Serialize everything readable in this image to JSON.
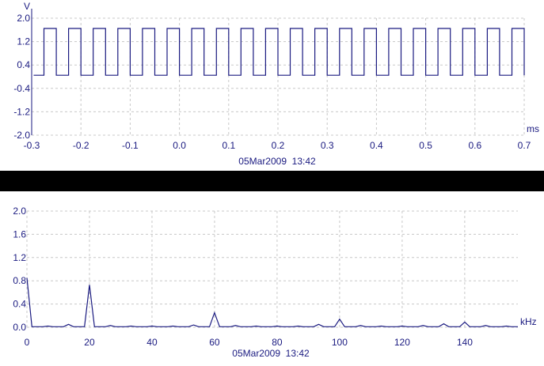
{
  "chart_data": [
    {
      "type": "line",
      "title": "",
      "xlabel": "",
      "ylabel": "",
      "x_unit": "ms",
      "y_unit": "V",
      "xlim": [
        -0.3,
        0.7
      ],
      "ylim": [
        -2.0,
        2.0
      ],
      "x_ticks": [
        "-0.3",
        "-0.2",
        "-0.1",
        "0.0",
        "0.1",
        "0.2",
        "0.3",
        "0.4",
        "0.5",
        "0.6",
        "0.7"
      ],
      "y_ticks": [
        "2.0",
        "1.2",
        "0.4",
        "-0.4",
        "-1.2",
        "-2.0"
      ],
      "grid": true,
      "timestamp": "05Mar2009  13:42",
      "series": [
        {
          "waveform": "square",
          "high": 1.65,
          "low": 0.05,
          "period_ms": 0.05,
          "first_rising_edge_ms": -0.275,
          "duty_cycle": 0.5
        }
      ],
      "color": "#1a1a80"
    },
    {
      "type": "line",
      "title": "",
      "xlabel": "",
      "ylabel": "",
      "x_unit": "kHz",
      "xlim": [
        0,
        157
      ],
      "ylim": [
        0.0,
        2.0
      ],
      "x_ticks": [
        "0",
        "20",
        "40",
        "60",
        "80",
        "100",
        "120",
        "140"
      ],
      "y_ticks": [
        "2.0",
        "1.6",
        "1.2",
        "0.8",
        "0.4",
        "0.0"
      ],
      "grid": true,
      "timestamp": "05Mar2009  13:42",
      "series": [
        {
          "peaks": [
            {
              "x": 0,
              "y": 0.85
            },
            {
              "x": 6.7,
              "y": 0.02
            },
            {
              "x": 13.3,
              "y": 0.05
            },
            {
              "x": 20,
              "y": 0.73
            },
            {
              "x": 26.7,
              "y": 0.03
            },
            {
              "x": 33.3,
              "y": 0.02
            },
            {
              "x": 40,
              "y": 0.02
            },
            {
              "x": 46.7,
              "y": 0.02
            },
            {
              "x": 53.3,
              "y": 0.04
            },
            {
              "x": 60,
              "y": 0.25
            },
            {
              "x": 66.7,
              "y": 0.03
            },
            {
              "x": 73.3,
              "y": 0.02
            },
            {
              "x": 80,
              "y": 0.02
            },
            {
              "x": 86.7,
              "y": 0.02
            },
            {
              "x": 93.3,
              "y": 0.05
            },
            {
              "x": 100,
              "y": 0.14
            },
            {
              "x": 106.7,
              "y": 0.03
            },
            {
              "x": 113.3,
              "y": 0.02
            },
            {
              "x": 120,
              "y": 0.02
            },
            {
              "x": 126.7,
              "y": 0.03
            },
            {
              "x": 133.3,
              "y": 0.06
            },
            {
              "x": 140,
              "y": 0.09
            },
            {
              "x": 146.7,
              "y": 0.03
            },
            {
              "x": 153.3,
              "y": 0.02
            }
          ]
        }
      ],
      "color": "#1a1a80"
    }
  ]
}
